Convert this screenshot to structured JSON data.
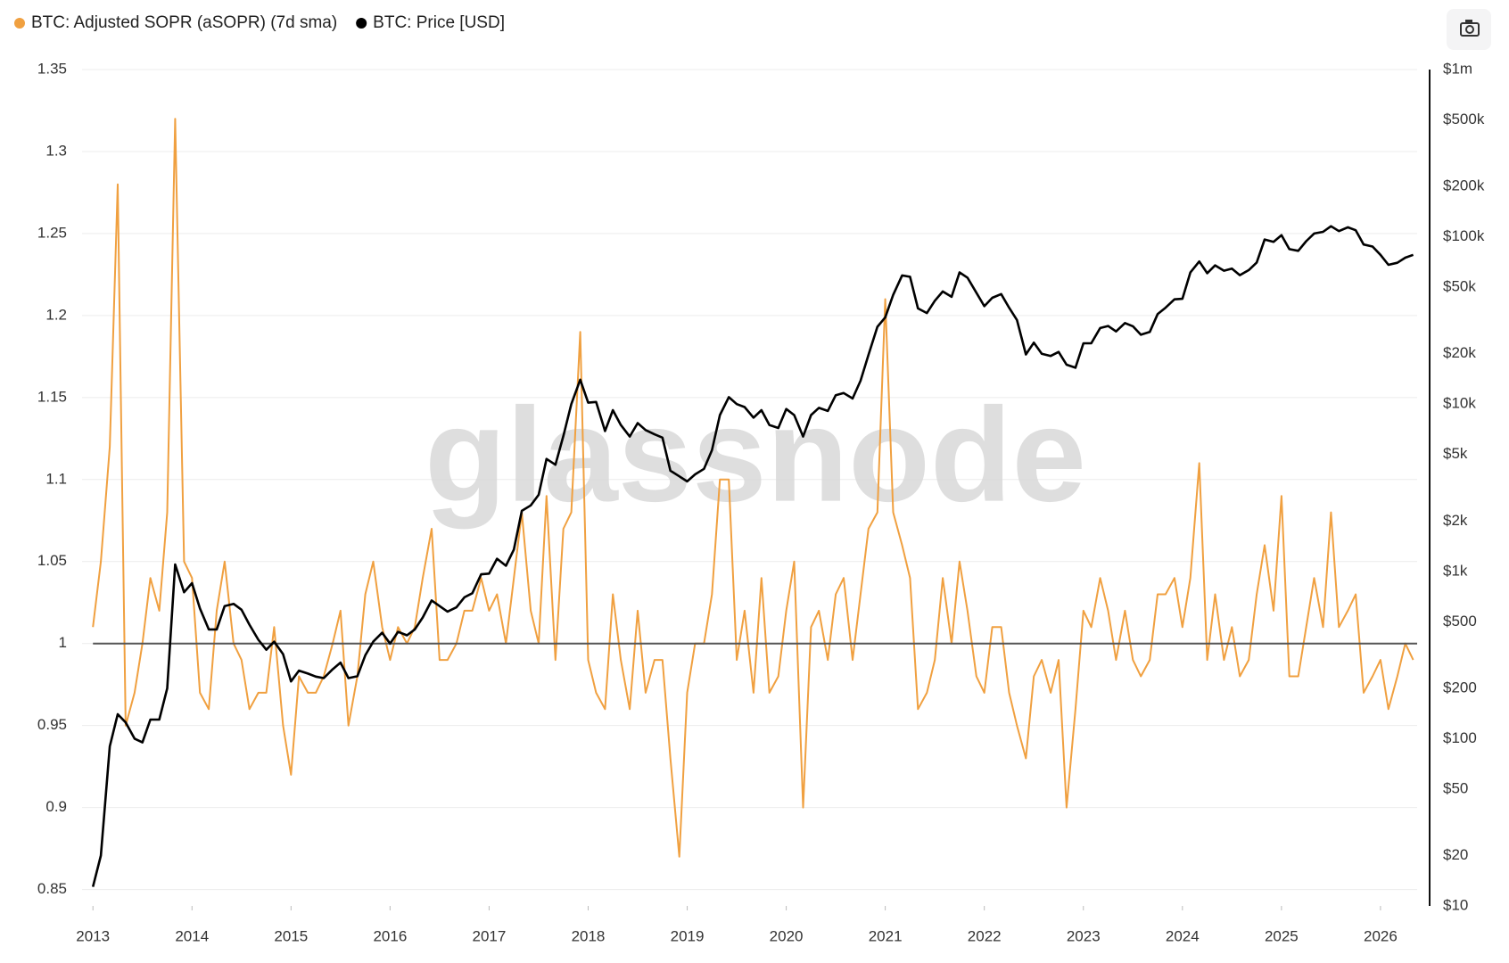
{
  "chart_data": {
    "type": "line",
    "watermark": "glassnode",
    "x": [
      2013.0,
      2013.08,
      2013.17,
      2013.25,
      2013.33,
      2013.42,
      2013.5,
      2013.58,
      2013.67,
      2013.75,
      2013.83,
      2013.92,
      2014.0,
      2014.08,
      2014.17,
      2014.25,
      2014.33,
      2014.42,
      2014.5,
      2014.58,
      2014.67,
      2014.75,
      2014.83,
      2014.92,
      2015.0,
      2015.08,
      2015.17,
      2015.25,
      2015.33,
      2015.42,
      2015.5,
      2015.58,
      2015.67,
      2015.75,
      2015.83,
      2015.92,
      2016.0,
      2016.08,
      2016.17,
      2016.25,
      2016.33,
      2016.42,
      2016.5,
      2016.58,
      2016.67,
      2016.75,
      2016.83,
      2016.92,
      2017.0,
      2017.08,
      2017.17,
      2017.25,
      2017.33,
      2017.42,
      2017.5,
      2017.58,
      2017.67,
      2017.75,
      2017.83,
      2017.92,
      2018.0,
      2018.08,
      2018.17,
      2018.25,
      2018.33,
      2018.42,
      2018.5,
      2018.58,
      2018.67,
      2018.75,
      2018.83,
      2018.92,
      2019.0,
      2019.08,
      2019.17,
      2019.25,
      2019.33,
      2019.42,
      2019.5,
      2019.58,
      2019.67,
      2019.75,
      2019.83,
      2019.92,
      2020.0,
      2020.08,
      2020.17,
      2020.25,
      2020.33,
      2020.42,
      2020.5,
      2020.58,
      2020.67,
      2020.75,
      2020.83,
      2020.92,
      2021.0,
      2021.08,
      2021.17,
      2021.25,
      2021.33,
      2021.42,
      2021.5,
      2021.58,
      2021.67,
      2021.75,
      2021.83,
      2021.92,
      2022.0,
      2022.08,
      2022.17,
      2022.25,
      2022.33,
      2022.42,
      2022.5,
      2022.58,
      2022.67,
      2022.75,
      2022.83,
      2022.92,
      2023.0,
      2023.08,
      2023.17,
      2023.25,
      2023.33,
      2023.42,
      2023.5,
      2023.58,
      2023.67,
      2023.75,
      2023.83,
      2023.92,
      2024.0,
      2024.08,
      2024.17,
      2024.25,
      2024.33,
      2024.42,
      2024.5,
      2024.58,
      2024.67,
      2024.75,
      2024.83,
      2024.92,
      2025.0,
      2025.08,
      2025.17,
      2025.25,
      2025.33,
      2025.42,
      2025.5,
      2025.58,
      2025.67,
      2025.75,
      2025.83,
      2025.92,
      2026.0,
      2026.08,
      2026.17,
      2026.25,
      2026.33
    ],
    "series": [
      {
        "name": "BTC: Adjusted SOPR (aSOPR) (7d sma)",
        "color": "#f0a040",
        "values": [
          1.01,
          1.05,
          1.12,
          1.28,
          0.95,
          0.97,
          1.0,
          1.04,
          1.02,
          1.08,
          1.32,
          1.05,
          1.04,
          0.97,
          0.96,
          1.02,
          1.05,
          1.0,
          0.99,
          0.96,
          0.97,
          0.97,
          1.01,
          0.95,
          0.92,
          0.98,
          0.97,
          0.97,
          0.98,
          1.0,
          1.02,
          0.95,
          0.98,
          1.03,
          1.05,
          1.01,
          0.99,
          1.01,
          1.0,
          1.01,
          1.04,
          1.07,
          0.99,
          0.99,
          1.0,
          1.02,
          1.02,
          1.04,
          1.02,
          1.03,
          1.0,
          1.04,
          1.08,
          1.02,
          1.0,
          1.09,
          0.99,
          1.07,
          1.08,
          1.19,
          0.99,
          0.97,
          0.96,
          1.03,
          0.99,
          0.96,
          1.02,
          0.97,
          0.99,
          0.99,
          0.93,
          0.87,
          0.97,
          1.0,
          1.0,
          1.03,
          1.1,
          1.1,
          0.99,
          1.02,
          0.97,
          1.04,
          0.97,
          0.98,
          1.02,
          1.05,
          0.9,
          1.01,
          1.02,
          0.99,
          1.03,
          1.04,
          0.99,
          1.03,
          1.07,
          1.08,
          1.21,
          1.08,
          1.06,
          1.04,
          0.96,
          0.97,
          0.99,
          1.04,
          1.0,
          1.05,
          1.02,
          0.98,
          0.97,
          1.01,
          1.01,
          0.97,
          0.95,
          0.93,
          0.98,
          0.99,
          0.97,
          0.99,
          0.9,
          0.96,
          1.02,
          1.01,
          1.04,
          1.02,
          0.99,
          1.02,
          0.99,
          0.98,
          0.99,
          1.03,
          1.03,
          1.04,
          1.01,
          1.04,
          1.11,
          0.99,
          1.03,
          0.99,
          1.01,
          0.98,
          0.99,
          1.03,
          1.06,
          1.02,
          1.09,
          0.98,
          0.98,
          1.01,
          1.04,
          1.01,
          1.08,
          1.01,
          1.02,
          1.03,
          0.97,
          0.98,
          0.99,
          0.96,
          0.98,
          1.0,
          0.99
        ]
      },
      {
        "name": "BTC: Price [USD]",
        "color": "#000000",
        "axis": "y2",
        "values": [
          13,
          20,
          90,
          140,
          125,
          100,
          95,
          130,
          130,
          200,
          1100,
          750,
          850,
          600,
          450,
          450,
          620,
          640,
          590,
          480,
          390,
          340,
          380,
          320,
          220,
          255,
          245,
          235,
          230,
          260,
          285,
          230,
          236,
          315,
          380,
          430,
          370,
          435,
          415,
          450,
          530,
          670,
          620,
          575,
          610,
          700,
          740,
          960,
          970,
          1190,
          1080,
          1350,
          2300,
          2480,
          2870,
          4700,
          4340,
          6450,
          10000,
          14000,
          10200,
          10300,
          6900,
          9200,
          7500,
          6400,
          7700,
          7000,
          6600,
          6300,
          4000,
          3700,
          3450,
          3800,
          4100,
          5300,
          8600,
          11000,
          10000,
          9600,
          8300,
          9200,
          7500,
          7200,
          9350,
          8600,
          6400,
          8600,
          9500,
          9100,
          11300,
          11650,
          10800,
          13800,
          19700,
          29000,
          33000,
          45000,
          58800,
          57700,
          37300,
          35000,
          41500,
          47100,
          43800,
          61300,
          57000,
          46300,
          38500,
          43200,
          45500,
          37700,
          31800,
          19800,
          23300,
          20000,
          19400,
          20500,
          17200,
          16500,
          23100,
          23100,
          28500,
          29300,
          27200,
          30500,
          29200,
          26000,
          27000,
          34500,
          37700,
          42300,
          42600,
          61200,
          71300,
          60600,
          67500,
          62700,
          64600,
          59000,
          63300,
          70200,
          96400,
          93400,
          102400,
          84400,
          82500,
          94200,
          104600,
          107100,
          115700,
          108200,
          114000,
          109500,
          90000,
          87500,
          78000,
          68000,
          70000,
          75000,
          78000
        ]
      }
    ],
    "reference_line": 1,
    "xlim": [
      2012.89,
      2026.37
    ],
    "xticks": [
      2013,
      2014,
      2015,
      2016,
      2017,
      2018,
      2019,
      2020,
      2021,
      2022,
      2023,
      2024,
      2025,
      2026
    ],
    "ylim": [
      0.84,
      1.35
    ],
    "yticks": [
      0.85,
      0.9,
      0.95,
      1,
      1.05,
      1.1,
      1.15,
      1.2,
      1.25,
      1.3,
      1.35
    ],
    "y2lim": [
      10,
      1000000
    ],
    "y2log": true,
    "y2ticks": [
      {
        "value": 10,
        "label": "$10"
      },
      {
        "value": 20,
        "label": "$20"
      },
      {
        "value": 50,
        "label": "$50"
      },
      {
        "value": 100,
        "label": "$100"
      },
      {
        "value": 200,
        "label": "$200"
      },
      {
        "value": 500,
        "label": "$500"
      },
      {
        "value": 1000,
        "label": "$1k"
      },
      {
        "value": 2000,
        "label": "$2k"
      },
      {
        "value": 5000,
        "label": "$5k"
      },
      {
        "value": 10000,
        "label": "$10k"
      },
      {
        "value": 20000,
        "label": "$20k"
      },
      {
        "value": 50000,
        "label": "$50k"
      },
      {
        "value": 100000,
        "label": "$100k"
      },
      {
        "value": 200000,
        "label": "$200k"
      },
      {
        "value": 500000,
        "label": "$500k"
      },
      {
        "value": 1000000,
        "label": "$1m"
      }
    ],
    "grid": true
  }
}
